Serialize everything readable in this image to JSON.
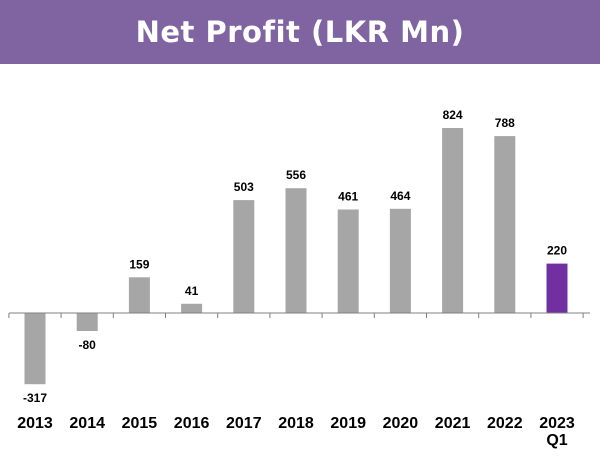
{
  "title": "Net Profit (LKR Mn)",
  "colors": {
    "title_bar": "#8064a2",
    "bar_default": "#a6a6a6",
    "bar_highlight": "#7030a0",
    "axis": "#808080"
  },
  "chart_data": {
    "type": "bar",
    "title": "Net Profit (LKR Mn)",
    "xlabel": "",
    "ylabel": "",
    "categories": [
      [
        "2013"
      ],
      [
        "2014"
      ],
      [
        "2015"
      ],
      [
        "2016"
      ],
      [
        "2017"
      ],
      [
        "2018"
      ],
      [
        "2019"
      ],
      [
        "2020"
      ],
      [
        "2021"
      ],
      [
        "2022"
      ],
      [
        "2023",
        "Q1"
      ]
    ],
    "values": [
      -317,
      -80,
      159,
      41,
      503,
      556,
      461,
      464,
      824,
      788,
      220
    ],
    "data_labels": [
      "-317",
      "-80",
      "159",
      "41",
      "503",
      "556",
      "461",
      "464",
      "824",
      "788",
      "220"
    ],
    "highlight_index": 10,
    "ylim": [
      -317,
      824
    ],
    "grid": false,
    "legend": "none"
  }
}
